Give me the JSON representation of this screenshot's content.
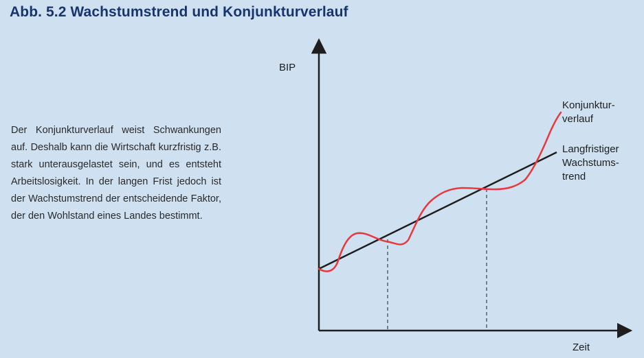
{
  "title": "Abb. 5.2  Wachstumstrend und Konjunkturverlauf",
  "description": "Der Konjunkturverlauf weist Schwan­kungen auf. Deshalb kann die Wirtschaft kurzfristig z.B. stark unterausgelastet sein, und es entsteht Arbeitslosig­keit. In der langen Frist jedoch ist der Wachstumstrend der entscheidende Faktor, der den Wohlstand eines Landes bestimmt.",
  "diagram": {
    "y_axis_label": "BIP",
    "x_axis_label": "Zeit",
    "curve_label_lines": [
      "Konjunktur-",
      "verlauf"
    ],
    "trend_label_lines": [
      "Langfristiger",
      "Wachstums-",
      "trend"
    ]
  },
  "colors": {
    "title": "#16356e",
    "background": "#cfe0f1",
    "curve": "#e8383d",
    "trend": "#1e1e1e"
  }
}
